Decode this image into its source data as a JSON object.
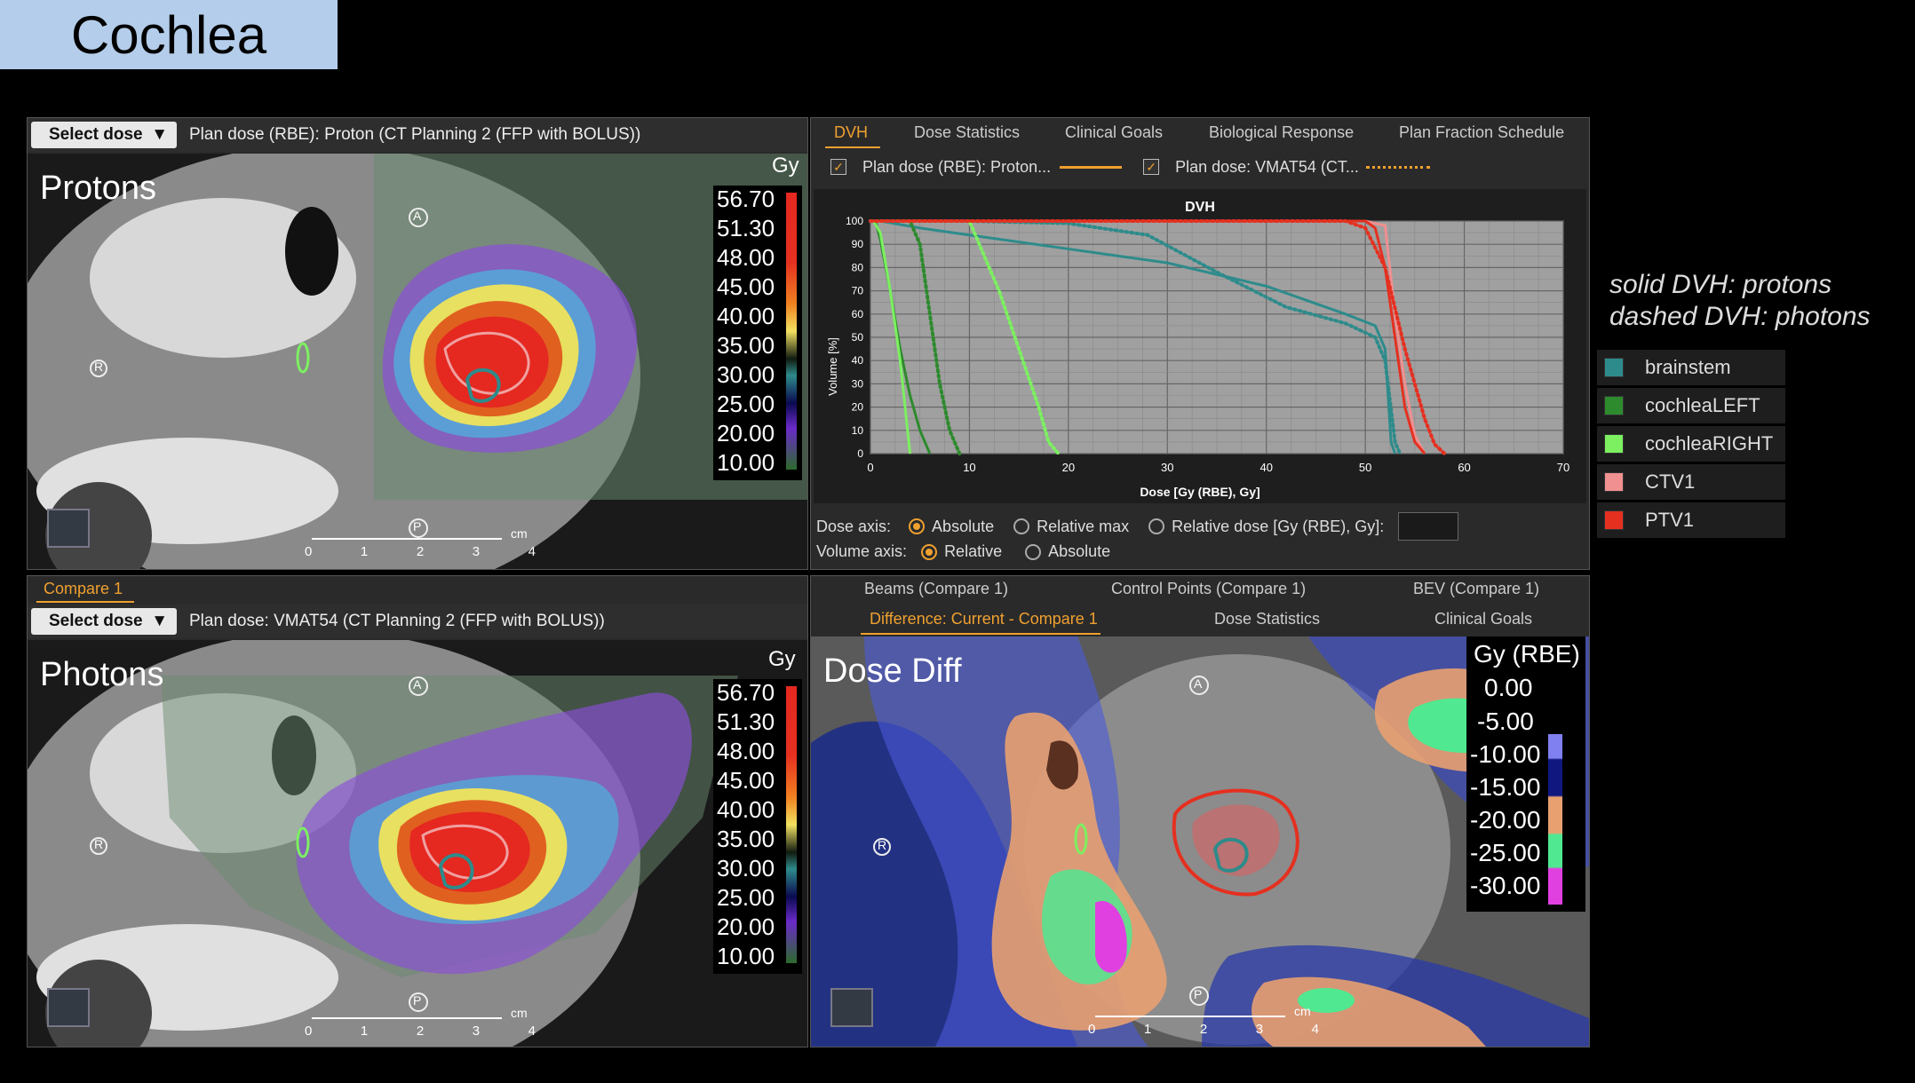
{
  "slide_title": "Cochlea",
  "top_panel": {
    "select_label": "Select dose",
    "plan_text": "Plan dose (RBE): Proton (CT Planning 2 (FFP with BOLUS))",
    "view_label": "Protons",
    "unit": "Gy",
    "colorbar": [
      "56.70",
      "51.30",
      "48.00",
      "45.00",
      "40.00",
      "35.00",
      "30.00",
      "25.00",
      "20.00",
      "10.00"
    ],
    "orient": {
      "a": "A",
      "r": "R",
      "p": "P"
    },
    "scale": {
      "unit": "cm",
      "ticks": [
        "0",
        "1",
        "2",
        "3",
        "4"
      ]
    }
  },
  "bottom_panel": {
    "tab": "Compare 1",
    "select_label": "Select dose",
    "plan_text": "Plan dose: VMAT54 (CT Planning 2 (FFP with BOLUS))",
    "view_label": "Photons",
    "unit": "Gy",
    "colorbar": [
      "56.70",
      "51.30",
      "48.00",
      "45.00",
      "40.00",
      "35.00",
      "30.00",
      "25.00",
      "20.00",
      "10.00"
    ],
    "orient": {
      "a": "A",
      "r": "R",
      "p": "P"
    },
    "scale": {
      "unit": "cm",
      "ticks": [
        "0",
        "1",
        "2",
        "3",
        "4"
      ]
    }
  },
  "dvh_panel": {
    "tabs": [
      "DVH",
      "Dose Statistics",
      "Clinical Goals",
      "Biological Response",
      "Plan Fraction Schedule"
    ],
    "legend1": "Plan dose (RBE): Proton...",
    "legend2": "Plan dose: VMAT54 (CT...",
    "dose_axis_label": "Dose axis:",
    "dose_opts": [
      "Absolute",
      "Relative max",
      "Relative dose [Gy (RBE), Gy]:"
    ],
    "volume_axis_label": "Volume axis:",
    "volume_opts": [
      "Relative",
      "Absolute"
    ]
  },
  "chart_data": {
    "type": "line",
    "title": "DVH",
    "xlabel": "Dose [Gy (RBE), Gy]",
    "ylabel": "Volume [%]",
    "xlim": [
      0,
      70
    ],
    "ylim": [
      0,
      100
    ],
    "xticks": [
      "0",
      "10",
      "20",
      "30",
      "40",
      "50",
      "60",
      "70"
    ],
    "yticks": [
      "0",
      "10",
      "20",
      "30",
      "40",
      "50",
      "60",
      "70",
      "80",
      "90",
      "100"
    ],
    "grid": true,
    "series": [
      {
        "name": "brainstem",
        "plan": "proton",
        "color": "#2e8b8b",
        "style": "solid",
        "x": [
          0,
          1,
          5,
          10,
          20,
          30,
          40,
          48,
          51,
          52,
          52.6,
          53
        ],
        "y": [
          100,
          100,
          97,
          94,
          88,
          82,
          72,
          60,
          55,
          45,
          5,
          0
        ]
      },
      {
        "name": "brainstem",
        "plan": "photon",
        "color": "#2e8b8b",
        "style": "dashed",
        "x": [
          0,
          10,
          20,
          28,
          35,
          42,
          48,
          51,
          52,
          53,
          53.5
        ],
        "y": [
          100,
          100,
          99,
          94,
          78,
          63,
          56,
          50,
          40,
          5,
          0
        ]
      },
      {
        "name": "cochleaLEFT",
        "plan": "proton",
        "color": "#2d8a2d",
        "style": "solid",
        "x": [
          0,
          0.5,
          1,
          2,
          3,
          4,
          5,
          6
        ],
        "y": [
          100,
          100,
          92,
          70,
          45,
          25,
          10,
          0
        ]
      },
      {
        "name": "cochleaLEFT",
        "plan": "photon",
        "color": "#2d8a2d",
        "style": "dashed",
        "x": [
          0,
          4,
          5,
          6,
          7,
          8,
          9
        ],
        "y": [
          100,
          100,
          90,
          60,
          30,
          10,
          0
        ]
      },
      {
        "name": "cochleaRIGHT",
        "plan": "proton",
        "color": "#7cf060",
        "style": "solid",
        "x": [
          0,
          0.3,
          1,
          2,
          3,
          4
        ],
        "y": [
          100,
          100,
          95,
          70,
          40,
          0
        ]
      },
      {
        "name": "cochleaRIGHT",
        "plan": "photon",
        "color": "#7cf060",
        "style": "dashed",
        "x": [
          0,
          10,
          11,
          13,
          15,
          17,
          18,
          19
        ],
        "y": [
          100,
          100,
          90,
          70,
          45,
          20,
          5,
          0
        ]
      },
      {
        "name": "CTV1",
        "plan": "proton",
        "color": "#f09090",
        "style": "solid",
        "x": [
          0,
          50,
          52,
          53,
          54,
          55,
          56
        ],
        "y": [
          100,
          100,
          98,
          60,
          30,
          8,
          0
        ]
      },
      {
        "name": "PTV1",
        "plan": "proton",
        "color": "#e53020",
        "style": "solid",
        "x": [
          0,
          50,
          51,
          52,
          53,
          54,
          55,
          56
        ],
        "y": [
          100,
          100,
          97,
          80,
          50,
          20,
          5,
          0
        ]
      },
      {
        "name": "PTV1",
        "plan": "photon",
        "color": "#e53020",
        "style": "dashed",
        "x": [
          0,
          48,
          50,
          52,
          54,
          56,
          57,
          58
        ],
        "y": [
          100,
          100,
          97,
          80,
          45,
          15,
          4,
          0
        ]
      }
    ]
  },
  "lower_right": {
    "tabs_row1": [
      "Beams (Compare 1)",
      "Control Points (Compare 1)",
      "BEV (Compare 1)"
    ],
    "tabs_row2": [
      "Difference: Current - Compare 1",
      "Dose Statistics",
      "Clinical Goals"
    ],
    "view_label": "Dose Diff",
    "unit": "Gy (RBE)",
    "colorbar": [
      "0.00",
      "-5.00",
      "-10.00",
      "-15.00",
      "-20.00",
      "-25.00",
      "-30.00"
    ],
    "orient": {
      "a": "A",
      "r": "R",
      "p": "P"
    },
    "scale": {
      "unit": "cm",
      "ticks": [
        "0",
        "1",
        "2",
        "3",
        "4"
      ]
    }
  },
  "annotation": {
    "line1": "solid DVH: protons",
    "line2": "dashed DVH: photons"
  },
  "structures": [
    {
      "name": "brainstem",
      "color": "#2e8b8b"
    },
    {
      "name": "cochleaLEFT",
      "color": "#2d8a2d"
    },
    {
      "name": "cochleaRIGHT",
      "color": "#7cf060"
    },
    {
      "name": "CTV1",
      "color": "#f09090"
    },
    {
      "name": "PTV1",
      "color": "#e53020"
    }
  ]
}
